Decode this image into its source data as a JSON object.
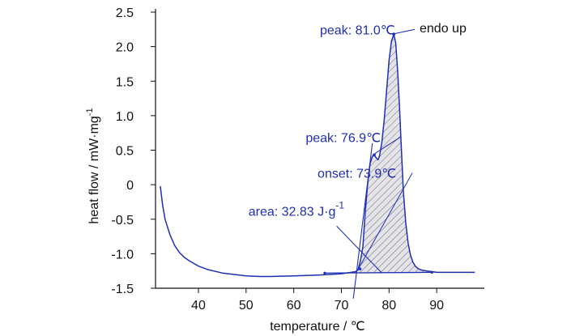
{
  "chart_data": {
    "type": "line",
    "xlabel": "temperature / ℃",
    "ylabel": "heat flow / mW·mg",
    "ylabel_sup": "-1",
    "xlim": [
      31,
      100
    ],
    "ylim": [
      -1.5,
      2.5
    ],
    "xticks": [
      40,
      50,
      60,
      70,
      80,
      90
    ],
    "yticks": [
      -1.5,
      -1.0,
      -0.5,
      0,
      0.5,
      1.0,
      1.5,
      2.0,
      2.5
    ],
    "xtick_labels": [
      "40",
      "50",
      "60",
      "70",
      "80",
      "90"
    ],
    "ytick_labels": [
      "-1.5",
      "-1.0",
      "-0.5",
      "0",
      "0.5",
      "1.0",
      "1.5",
      "2.0",
      "2.5"
    ],
    "series_color": "#1f2fb5",
    "series": [
      {
        "x": [
          32,
          32.5,
          33,
          34,
          35,
          36,
          37,
          38,
          40,
          42,
          45,
          50,
          53,
          55,
          60,
          65,
          68,
          70,
          72,
          73,
          73.5,
          74,
          74.5,
          75,
          75.5,
          76,
          76.5,
          76.9,
          77.3,
          77.7,
          78,
          78.5,
          79,
          79.5,
          80,
          80.5,
          81,
          81.4,
          81.8,
          82.2,
          82.6,
          83,
          83.5,
          84,
          84.5,
          85,
          85.5,
          86,
          86.5,
          87,
          88,
          89,
          90,
          92,
          95,
          98
        ],
        "y": [
          -0.02,
          -0.3,
          -0.5,
          -0.72,
          -0.88,
          -0.98,
          -1.05,
          -1.1,
          -1.18,
          -1.23,
          -1.28,
          -1.32,
          -1.33,
          -1.33,
          -1.32,
          -1.31,
          -1.3,
          -1.29,
          -1.27,
          -1.26,
          -1.23,
          -1.1,
          -0.9,
          -0.4,
          0.0,
          0.3,
          0.41,
          0.43,
          0.39,
          0.36,
          0.42,
          0.62,
          0.95,
          1.38,
          1.8,
          2.08,
          2.18,
          2.05,
          1.65,
          1.1,
          0.5,
          -0.1,
          -0.55,
          -0.85,
          -1.02,
          -1.12,
          -1.18,
          -1.21,
          -1.23,
          -1.24,
          -1.25,
          -1.26,
          -1.27,
          -1.27,
          -1.27,
          -1.27
        ]
      }
    ],
    "baseline": {
      "x": [
        66.5,
        89
      ],
      "y": [
        -1.28,
        -1.27
      ]
    },
    "onset_tangent": {
      "x": [
        72.5,
        76.5
      ],
      "y": [
        -1.65,
        0.6
      ]
    },
    "area_pointer": {
      "x": [
        69,
        78.5
      ],
      "y": [
        -0.6,
        -1.28
      ]
    },
    "annotations": [
      {
        "text": "peak: 81.0℃",
        "x": 81.0,
        "y": 2.18,
        "label_x": 65.5,
        "label_y": 2.18
      },
      {
        "text": "peak: 76.9℃",
        "x": 76.9,
        "y": 0.43,
        "label_x": 62.5,
        "label_y": 0.62
      },
      {
        "text": "onset: 73.9℃",
        "x": 73.9,
        "y": -1.22,
        "label_x": 65.0,
        "label_y": 0.1
      },
      {
        "text": "area: 32.83 J·g",
        "sup": "-1",
        "label_x": 50.5,
        "label_y": -0.45
      }
    ],
    "note": "endo up",
    "grid": false
  }
}
